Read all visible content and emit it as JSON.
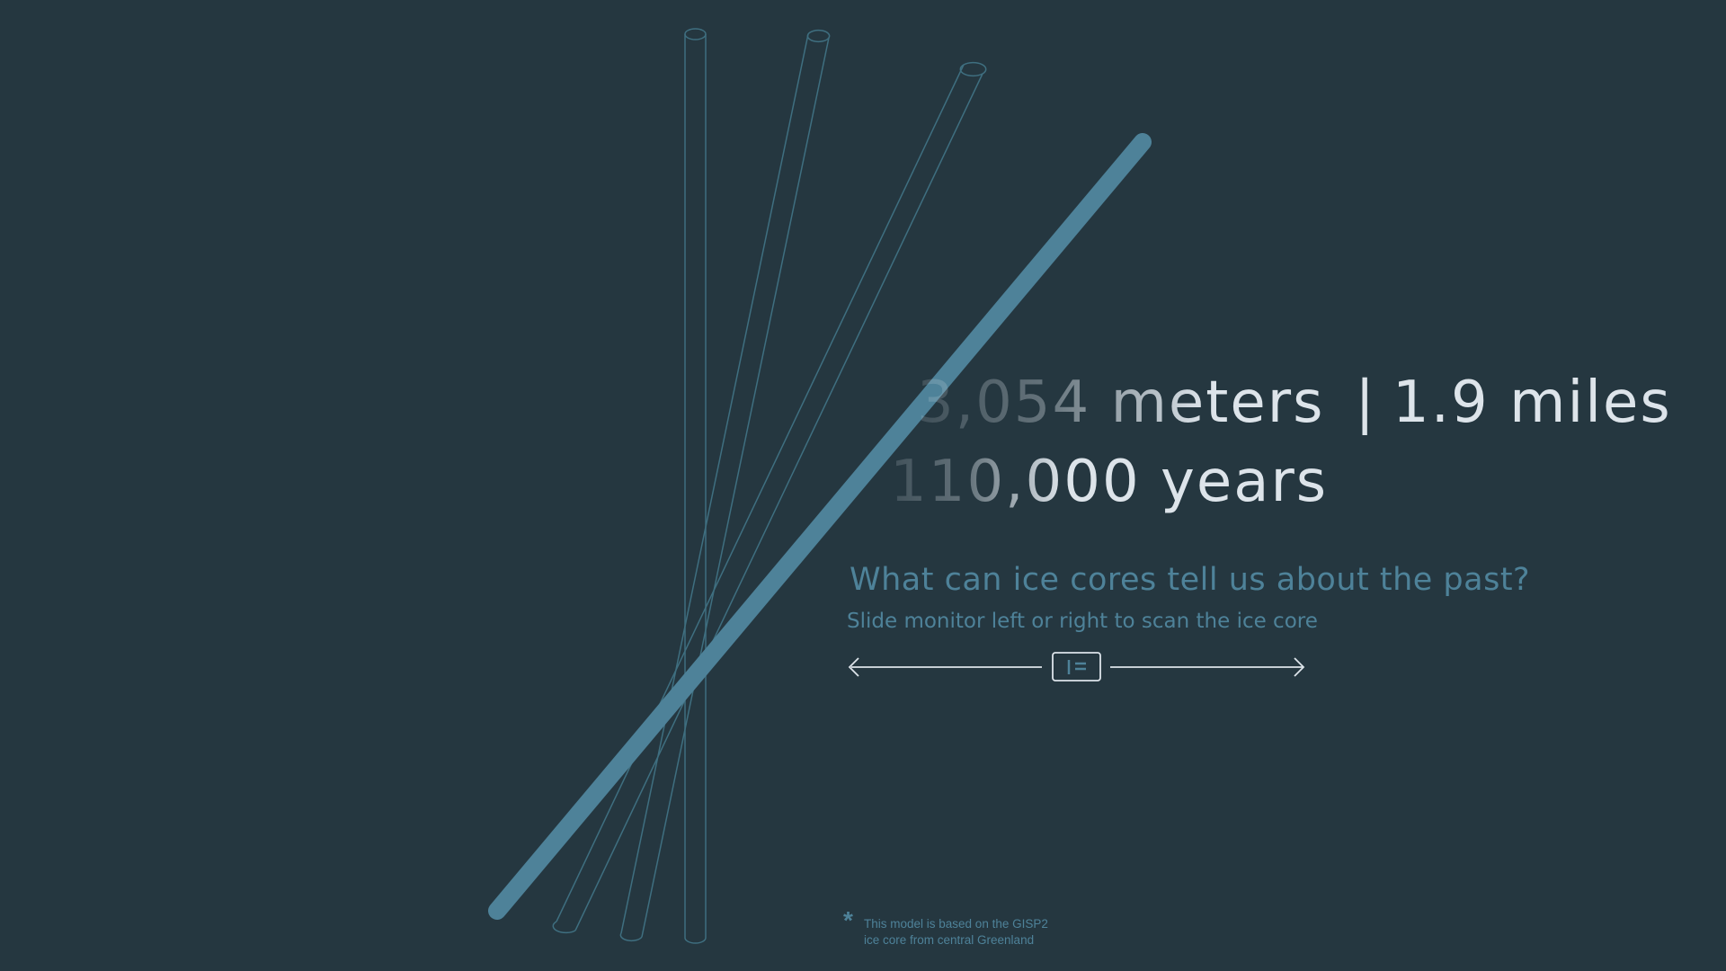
{
  "headline": {
    "depth_faded": "3,054 me",
    "depth_visible": "ters",
    "separator": "|",
    "miles": "1.9 miles",
    "age_faded": "110,0",
    "age_visible": "00 years"
  },
  "question": "What can ice cores tell us about the past?",
  "instruction": "Slide monitor left or right to scan the ice core",
  "slider": {
    "left_arrow_icon": "arrow-left-icon",
    "right_arrow_icon": "arrow-right-icon",
    "handle_icon": "monitor-icon"
  },
  "footnote": {
    "mark": "*",
    "line1": "This model is based on the GISP2",
    "line2": "ice core from central Greenland"
  },
  "colors": {
    "background": "#253740",
    "core_active": "#4e8299",
    "core_outline": "#3f6f80",
    "headline_text": "#dde4ea",
    "accent_text": "#4e8299",
    "slider_line": "#dde4ea"
  }
}
